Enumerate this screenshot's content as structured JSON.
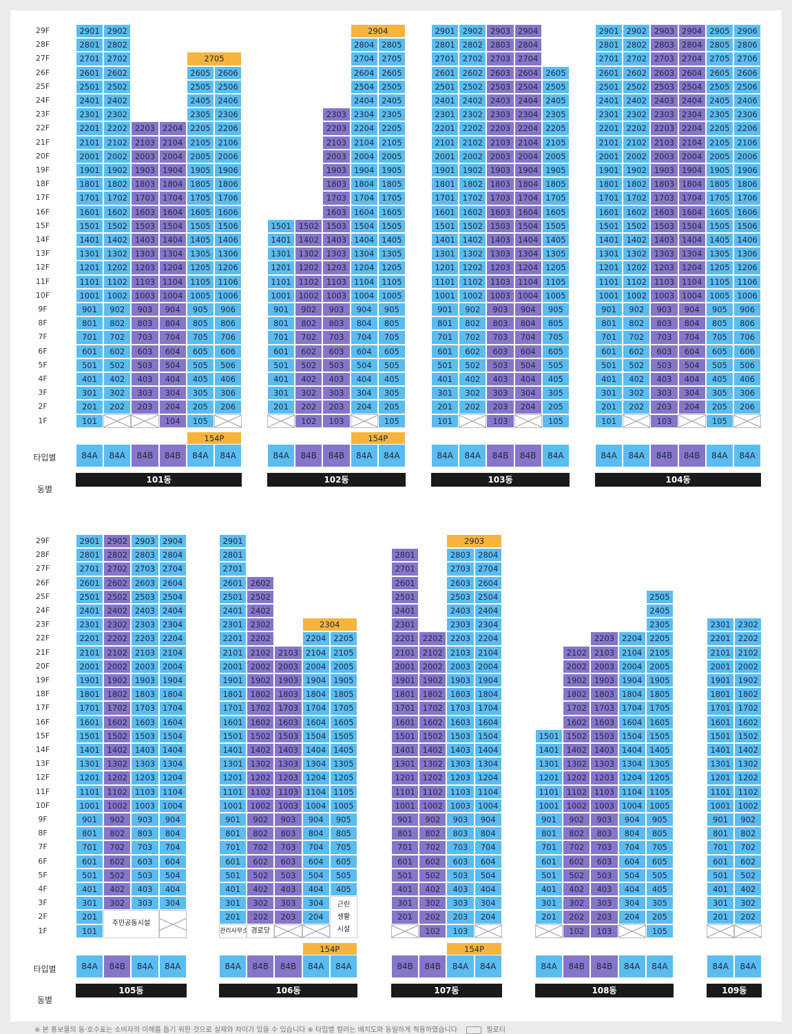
{
  "labels": {
    "type_row": "타입별",
    "building_row": "동별",
    "pilotis": "필로티"
  },
  "footnote": "※ 본 홍보물의 동·호수표는 소비자의 이해를 돕기 위한 것으로 실제와 차이가 있을 수 있습니다 ※ 타입별 컬러는 배치도와 동일하게 적용하였습니다",
  "colors": {
    "84A": "#5bbcf0",
    "84B": "#8775c9",
    "154P": "#f6b43e",
    "pilotis": "#ffffff"
  },
  "floors": [
    "29F",
    "28F",
    "27F",
    "26F",
    "25F",
    "24F",
    "23F",
    "22F",
    "21F",
    "20F",
    "19F",
    "18F",
    "17F",
    "16F",
    "15F",
    "14F",
    "13F",
    "12F",
    "11F",
    "10F",
    "9F",
    "8F",
    "7F",
    "6F",
    "5F",
    "4F",
    "3F",
    "2F",
    "1F"
  ],
  "buildings": [
    {
      "name": "101동",
      "columns": [
        {
          "type": "84A",
          "color": "A",
          "top": 29,
          "bottom": 1,
          "ground": "unit"
        },
        {
          "type": "84A",
          "color": "A",
          "top": 29,
          "bottom": 2,
          "ground": "pilotis"
        },
        {
          "type": "84B",
          "color": "B",
          "top": 22,
          "bottom": 2,
          "ground": "pilotis"
        },
        {
          "type": "84B",
          "color": "B",
          "top": 22,
          "bottom": 1,
          "ground": "unit"
        },
        {
          "type": "84A",
          "color": "A",
          "top": 26,
          "bottom": 1,
          "ground": "unit"
        },
        {
          "type": "84A",
          "color": "A",
          "top": 26,
          "bottom": 2,
          "ground": "pilotis"
        }
      ],
      "penthouses": [
        {
          "label": "2705",
          "cols": [
            4,
            5
          ],
          "floor": 27
        }
      ],
      "type_badges": [
        {
          "label": "154P",
          "cols": [
            4,
            5
          ]
        }
      ]
    },
    {
      "name": "102동",
      "columns": [
        {
          "type": "84A",
          "color": "A",
          "top": 15,
          "bottom": 2,
          "ground": "pilotis"
        },
        {
          "type": "84B",
          "color": "B",
          "top": 15,
          "bottom": 1,
          "ground": "unit"
        },
        {
          "type": "84B",
          "color": "B",
          "top": 23,
          "bottom": 1,
          "ground": "unit"
        },
        {
          "type": "84A",
          "color": "A",
          "top": 28,
          "bottom": 2,
          "ground": "pilotis"
        },
        {
          "type": "84A",
          "color": "A",
          "top": 28,
          "bottom": 1,
          "ground": "unit"
        }
      ],
      "penthouses": [
        {
          "label": "2904",
          "cols": [
            3,
            4
          ],
          "floor": 29
        }
      ],
      "type_badges": [
        {
          "label": "154P",
          "cols": [
            3,
            4
          ]
        }
      ]
    },
    {
      "name": "103동",
      "columns": [
        {
          "type": "84A",
          "color": "A",
          "top": 29,
          "bottom": 1,
          "ground": "unit"
        },
        {
          "type": "84A",
          "color": "A",
          "top": 29,
          "bottom": 2,
          "ground": "pilotis"
        },
        {
          "type": "84B",
          "color": "B",
          "top": 29,
          "bottom": 1,
          "ground": "unit"
        },
        {
          "type": "84B",
          "color": "B",
          "top": 29,
          "bottom": 2,
          "ground": "pilotis"
        },
        {
          "type": "84A",
          "color": "A",
          "top": 26,
          "bottom": 1,
          "ground": "unit"
        }
      ],
      "penthouses": [],
      "type_badges": []
    },
    {
      "name": "104동",
      "columns": [
        {
          "type": "84A",
          "color": "A",
          "top": 29,
          "bottom": 1,
          "ground": "unit"
        },
        {
          "type": "84A",
          "color": "A",
          "top": 29,
          "bottom": 2,
          "ground": "pilotis"
        },
        {
          "type": "84B",
          "color": "B",
          "top": 29,
          "bottom": 1,
          "ground": "unit"
        },
        {
          "type": "84B",
          "color": "B",
          "top": 29,
          "bottom": 2,
          "ground": "pilotis"
        },
        {
          "type": "84A",
          "color": "A",
          "top": 29,
          "bottom": 1,
          "ground": "unit"
        },
        {
          "type": "84A",
          "color": "A",
          "top": 29,
          "bottom": 2,
          "ground": "pilotis"
        }
      ],
      "penthouses": [],
      "type_badges": []
    },
    {
      "name": "105동",
      "columns": [
        {
          "type": "84A",
          "color": "A",
          "top": 29,
          "bottom": 1,
          "ground": "unit"
        },
        {
          "type": "84B",
          "color": "B",
          "top": 29,
          "bottom": 3,
          "ground": "facility"
        },
        {
          "type": "84A",
          "color": "A",
          "top": 29,
          "bottom": 3,
          "ground": "facility"
        },
        {
          "type": "84A",
          "color": "A",
          "top": 29,
          "bottom": 3,
          "ground": "pilotis2"
        }
      ],
      "penthouses": [],
      "type_badges": [],
      "facilities": [
        {
          "label": "주민공동시설",
          "cols": [
            1,
            2
          ],
          "floors": [
            2,
            1
          ]
        }
      ]
    },
    {
      "name": "106동",
      "columns": [
        {
          "type": "84A",
          "color": "A",
          "top": 29,
          "bottom": 2,
          "ground": "office"
        },
        {
          "type": "84B",
          "color": "B",
          "top": 26,
          "bottom": 2,
          "ground": "seniors"
        },
        {
          "type": "84B",
          "color": "B",
          "top": 21,
          "bottom": 2,
          "ground": "pilotis"
        },
        {
          "type": "84A",
          "color": "A",
          "top": 22,
          "bottom": 2,
          "ground": "pilotis"
        },
        {
          "type": "84A",
          "color": "A",
          "top": 22,
          "bottom": 4,
          "ground": "retail"
        }
      ],
      "penthouses": [
        {
          "label": "2304",
          "cols": [
            3,
            4
          ],
          "floor": 23
        }
      ],
      "type_badges": [
        {
          "label": "154P",
          "cols": [
            3,
            4
          ]
        }
      ],
      "ground_labels": {
        "office": "관리사무소",
        "seniors": "경로당",
        "retail": "근린\n생활\n시설"
      }
    },
    {
      "name": "107동",
      "columns": [
        {
          "type": "84B",
          "color": "B",
          "top": 28,
          "bottom": 2,
          "ground": "pilotis"
        },
        {
          "type": "84B",
          "color": "B",
          "top": 22,
          "bottom": 1,
          "ground": "unit"
        },
        {
          "type": "84A",
          "color": "A",
          "top": 28,
          "bottom": 1,
          "ground": "unit"
        },
        {
          "type": "84A",
          "color": "A",
          "top": 28,
          "bottom": 2,
          "ground": "pilotis"
        }
      ],
      "penthouses": [
        {
          "label": "2903",
          "cols": [
            2,
            3
          ],
          "floor": 29
        }
      ],
      "type_badges": [
        {
          "label": "154P",
          "cols": [
            2,
            3
          ]
        }
      ]
    },
    {
      "name": "108동",
      "columns": [
        {
          "type": "84A",
          "color": "A",
          "top": 15,
          "bottom": 2,
          "ground": "pilotis"
        },
        {
          "type": "84B",
          "color": "B",
          "top": 21,
          "bottom": 1,
          "ground": "unit"
        },
        {
          "type": "84B",
          "color": "B",
          "top": 22,
          "bottom": 1,
          "ground": "unit"
        },
        {
          "type": "84A",
          "color": "A",
          "top": 22,
          "bottom": 2,
          "ground": "pilotis"
        },
        {
          "type": "84A",
          "color": "A",
          "top": 25,
          "bottom": 1,
          "ground": "unit"
        }
      ],
      "penthouses": [],
      "type_badges": []
    },
    {
      "name": "109동",
      "columns": [
        {
          "type": "84A",
          "color": "A",
          "top": 23,
          "bottom": 2,
          "ground": "pilotis"
        },
        {
          "type": "84A",
          "color": "A",
          "top": 23,
          "bottom": 2,
          "ground": "pilotis"
        }
      ],
      "penthouses": [],
      "type_badges": []
    }
  ]
}
